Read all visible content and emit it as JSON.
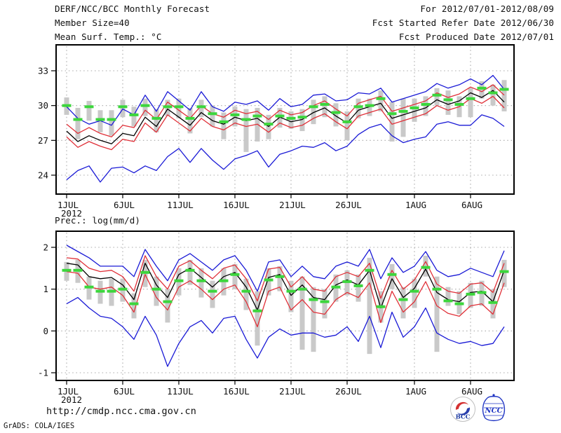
{
  "header": {
    "title": "DERF/NCC/BCC Monthly Forecast",
    "member_size": "Member Size=40",
    "for_range": "For 2012/07/01-2012/08/09",
    "fcst_started": "Fcst Started Refer Date 2012/06/30",
    "fcst_produced": "Fcst Produced Date 2012/07/01"
  },
  "labels": {
    "temp_axis_title": "Mean Surf. Temp.: °C",
    "prec_axis_title": "Prec.: log(mm/d)"
  },
  "footer": {
    "url": "http://cmdp.ncc.cma.gov.cn",
    "credit": "GrADS: COLA/IGES",
    "bcc_logo_text": "BCC",
    "ncc_logo_text": "NCC"
  },
  "colors": {
    "line_blue": "#1a1ad6",
    "line_red": "#e03038",
    "line_black": "#000000",
    "obs_green": "#3cd63c",
    "bar_gray": "#c9c9c9",
    "grid_gray": "#a8a8a8",
    "frame_black": "#000000",
    "text": "#111111",
    "logo_blue": "#2136c4",
    "logo_red": "#d43030"
  },
  "chart_data": [
    {
      "id": "temp",
      "type": "line",
      "title": "Mean Surf. Temp.: °C",
      "x_tick_labels": [
        "1JUL",
        "6JUL",
        "11JUL",
        "16JUL",
        "21JUL",
        "26JUL",
        "1AUG",
        "6AUG"
      ],
      "x_tick_days": [
        0,
        5,
        10,
        15,
        20,
        25,
        31,
        36
      ],
      "x_sub_label": "2012",
      "n_days": 40,
      "yticks": [
        33,
        30,
        27,
        24
      ],
      "ylim": [
        22.4,
        34.2
      ],
      "grid": true,
      "series": [
        {
          "name": "ensemble max (blue)",
          "color_key": "line_blue",
          "values": [
            29.9,
            28.9,
            28.4,
            28.7,
            28.3,
            29.7,
            29.2,
            30.9,
            29.5,
            31.2,
            30.4,
            29.6,
            31.2,
            29.9,
            29.5,
            30.3,
            30.1,
            30.4,
            29.6,
            30.6,
            29.9,
            30.1,
            30.9,
            31.0,
            30.4,
            30.5,
            31.1,
            31.0,
            31.5,
            30.3,
            30.6,
            30.9,
            31.2,
            31.9,
            31.5,
            31.8,
            32.3,
            31.8,
            32.6,
            31.4
          ]
        },
        {
          "name": "upper spread (red)",
          "color_key": "line_red",
          "values": [
            28.4,
            27.6,
            28.1,
            27.6,
            27.3,
            28.3,
            28.1,
            29.6,
            28.8,
            30.3,
            29.6,
            28.9,
            30.0,
            29.3,
            29.0,
            29.6,
            29.3,
            29.5,
            28.8,
            29.6,
            29.2,
            29.4,
            30.0,
            30.4,
            29.7,
            29.1,
            30.2,
            30.5,
            30.8,
            29.5,
            29.8,
            30.1,
            30.4,
            31.1,
            30.7,
            31.0,
            31.6,
            31.2,
            31.8,
            30.9
          ]
        },
        {
          "name": "ensemble mean (black)",
          "color_key": "line_black",
          "values": [
            27.8,
            26.9,
            27.4,
            27.0,
            26.7,
            27.6,
            27.4,
            29.0,
            28.2,
            29.7,
            29.0,
            28.3,
            29.4,
            28.7,
            28.4,
            29.0,
            28.7,
            28.9,
            28.2,
            29.0,
            28.6,
            28.8,
            29.4,
            29.8,
            29.1,
            28.5,
            29.6,
            29.9,
            30.2,
            28.9,
            29.2,
            29.5,
            29.8,
            30.5,
            30.1,
            30.4,
            31.1,
            30.7,
            31.3,
            30.3
          ]
        },
        {
          "name": "lower spread (red)",
          "color_key": "line_red",
          "values": [
            27.3,
            26.4,
            26.9,
            26.5,
            26.2,
            27.1,
            26.9,
            28.5,
            27.7,
            29.2,
            28.5,
            27.8,
            28.9,
            28.2,
            27.9,
            28.5,
            28.2,
            28.4,
            27.7,
            28.5,
            28.1,
            28.3,
            28.9,
            29.3,
            28.6,
            28.0,
            29.1,
            29.4,
            29.7,
            28.4,
            28.7,
            29.0,
            29.3,
            30.0,
            29.6,
            29.9,
            30.6,
            30.2,
            30.8,
            29.8
          ]
        },
        {
          "name": "ensemble min (blue)",
          "color_key": "line_blue",
          "values": [
            23.6,
            24.4,
            24.8,
            23.4,
            24.6,
            24.7,
            24.2,
            24.8,
            24.4,
            25.6,
            26.3,
            25.1,
            26.3,
            25.3,
            24.5,
            25.4,
            25.7,
            26.1,
            24.7,
            25.8,
            26.1,
            26.5,
            26.4,
            26.8,
            26.1,
            26.5,
            27.5,
            28.1,
            28.4,
            27.4,
            26.8,
            27.1,
            27.3,
            28.4,
            28.6,
            28.3,
            28.3,
            29.2,
            28.9,
            28.2
          ]
        }
      ],
      "obs_dashes": {
        "name": "green dash marks",
        "color_key": "obs_green",
        "values": [
          30.0,
          28.8,
          29.9,
          28.8,
          28.8,
          29.9,
          29.2,
          30.0,
          28.9,
          29.9,
          29.9,
          28.9,
          29.9,
          29.3,
          28.6,
          29.2,
          28.8,
          29.1,
          28.4,
          29.1,
          28.9,
          29.0,
          29.9,
          30.1,
          29.4,
          28.6,
          29.9,
          30.0,
          30.6,
          29.3,
          29.5,
          29.8,
          30.1,
          30.9,
          30.5,
          30.1,
          30.6,
          31.5,
          31.1,
          31.4
        ]
      },
      "spread_bars": {
        "name": "gray spread bars",
        "color_key": "bar_gray",
        "hi": [
          30.7,
          29.8,
          30.4,
          29.6,
          29.6,
          30.5,
          29.9,
          30.6,
          29.7,
          30.5,
          30.6,
          29.8,
          30.5,
          30.0,
          29.4,
          29.9,
          29.7,
          29.8,
          29.2,
          29.8,
          29.5,
          29.7,
          30.5,
          30.8,
          30.2,
          29.5,
          30.6,
          30.6,
          31.3,
          30.3,
          30.6,
          30.6,
          30.8,
          31.5,
          31.3,
          30.8,
          31.5,
          32.1,
          31.8,
          32.2
        ],
        "lo": [
          29.2,
          27.1,
          28.7,
          27.7,
          27.4,
          29.0,
          28.2,
          29.1,
          27.7,
          29.1,
          28.9,
          27.6,
          29.0,
          28.2,
          27.1,
          28.2,
          26.0,
          26.9,
          27.1,
          28.1,
          28.0,
          27.8,
          28.4,
          29.0,
          28.2,
          27.0,
          28.9,
          29.1,
          29.5,
          26.9,
          27.3,
          28.6,
          29.1,
          30.0,
          29.2,
          29.0,
          29.0,
          30.6,
          30.0,
          29.5
        ]
      }
    },
    {
      "id": "prec",
      "type": "line",
      "title": "Prec.: log(mm/d)",
      "x_tick_labels": [
        "1JUL",
        "6JUL",
        "11JUL",
        "16JUL",
        "21JUL",
        "26JUL",
        "1AUG",
        "6AUG"
      ],
      "x_tick_days": [
        0,
        5,
        10,
        15,
        20,
        25,
        31,
        36
      ],
      "x_sub_label": "2012",
      "n_days": 40,
      "yticks": [
        2,
        1,
        0,
        -1
      ],
      "ylim": [
        -1.2,
        2.4
      ],
      "grid": true,
      "series": [
        {
          "name": "ensemble max (blue)",
          "color_key": "line_blue",
          "values": [
            2.05,
            1.9,
            1.75,
            1.55,
            1.55,
            1.55,
            1.3,
            1.95,
            1.55,
            1.2,
            1.7,
            1.85,
            1.65,
            1.45,
            1.7,
            1.8,
            1.45,
            0.95,
            1.65,
            1.7,
            1.3,
            1.55,
            1.3,
            1.25,
            1.55,
            1.65,
            1.55,
            1.95,
            1.25,
            1.75,
            1.4,
            1.55,
            1.9,
            1.45,
            1.3,
            1.35,
            1.5,
            1.4,
            1.3,
            1.92
          ]
        },
        {
          "name": "upper spread (red)",
          "color_key": "line_red",
          "values": [
            1.75,
            1.72,
            1.5,
            1.42,
            1.45,
            1.3,
            0.95,
            1.8,
            1.3,
            1.0,
            1.55,
            1.68,
            1.45,
            1.25,
            1.5,
            1.58,
            1.25,
            0.72,
            1.48,
            1.52,
            1.05,
            1.3,
            1.0,
            0.95,
            1.3,
            1.4,
            1.3,
            1.62,
            0.78,
            1.45,
            1.0,
            1.22,
            1.66,
            1.12,
            0.95,
            0.9,
            1.12,
            1.15,
            0.92,
            1.62
          ]
        },
        {
          "name": "ensemble mean (black)",
          "color_key": "line_black",
          "values": [
            1.62,
            1.58,
            1.3,
            1.25,
            1.28,
            1.1,
            0.75,
            1.62,
            1.1,
            0.8,
            1.35,
            1.5,
            1.28,
            1.05,
            1.3,
            1.4,
            1.05,
            0.5,
            1.28,
            1.35,
            0.85,
            1.1,
            0.8,
            0.75,
            1.1,
            1.22,
            1.1,
            1.45,
            0.55,
            1.25,
            0.8,
            1.02,
            1.48,
            0.92,
            0.75,
            0.7,
            0.92,
            0.95,
            0.7,
            1.45
          ]
        },
        {
          "name": "lower spread (red)",
          "color_key": "line_red",
          "values": [
            1.42,
            1.38,
            1.05,
            1.0,
            1.05,
            0.85,
            0.45,
            1.35,
            0.8,
            0.5,
            1.05,
            1.2,
            1.0,
            0.75,
            1.0,
            1.1,
            0.7,
            0.1,
            0.95,
            1.05,
            0.5,
            0.75,
            0.45,
            0.4,
            0.75,
            0.92,
            0.8,
            1.15,
            0.2,
            0.95,
            0.45,
            0.7,
            1.18,
            0.6,
            0.42,
            0.35,
            0.6,
            0.65,
            0.4,
            1.15
          ]
        },
        {
          "name": "ensemble min (blue)",
          "color_key": "line_blue",
          "values": [
            0.65,
            0.8,
            0.55,
            0.35,
            0.3,
            0.1,
            -0.2,
            0.35,
            -0.1,
            -0.85,
            -0.3,
            0.1,
            0.25,
            -0.05,
            0.3,
            0.35,
            -0.2,
            -0.65,
            -0.15,
            0.05,
            -0.1,
            -0.05,
            -0.05,
            -0.15,
            -0.1,
            0.1,
            -0.25,
            0.35,
            -0.4,
            0.45,
            -0.15,
            0.1,
            0.55,
            -0.05,
            -0.2,
            -0.3,
            -0.25,
            -0.35,
            -0.3,
            0.1
          ]
        }
      ],
      "obs_dashes": {
        "name": "green dash marks",
        "color_key": "obs_green",
        "values": [
          1.45,
          1.45,
          1.05,
          0.95,
          0.95,
          1.0,
          0.65,
          1.4,
          1.0,
          0.7,
          1.2,
          1.45,
          1.2,
          0.95,
          1.2,
          1.35,
          0.95,
          0.48,
          1.22,
          1.3,
          0.95,
          1.0,
          0.75,
          0.7,
          1.05,
          1.18,
          1.08,
          1.45,
          0.58,
          1.35,
          0.75,
          0.95,
          1.52,
          1.0,
          0.72,
          0.65,
          0.88,
          0.92,
          0.68,
          1.42
        ]
      },
      "spread_bars": {
        "name": "gray spread bars",
        "color_key": "bar_gray",
        "hi": [
          1.65,
          1.7,
          1.3,
          1.2,
          1.25,
          1.25,
          0.9,
          1.7,
          1.3,
          1.0,
          1.5,
          1.7,
          1.5,
          1.2,
          1.5,
          1.6,
          1.25,
          0.95,
          1.5,
          1.55,
          1.2,
          1.3,
          1.05,
          1.0,
          1.35,
          1.45,
          1.35,
          1.75,
          0.95,
          1.6,
          1.05,
          1.25,
          1.8,
          1.3,
          1.05,
          0.95,
          1.15,
          1.2,
          1.0,
          1.7
        ],
        "lo": [
          1.2,
          1.15,
          0.75,
          0.65,
          0.6,
          0.7,
          0.3,
          1.05,
          0.6,
          0.2,
          0.85,
          1.1,
          0.8,
          0.55,
          0.85,
          1.0,
          0.5,
          -0.35,
          0.85,
          0.95,
          0.45,
          -0.45,
          -0.5,
          0.3,
          0.7,
          0.85,
          0.7,
          -0.55,
          0.2,
          1.0,
          0.3,
          0.55,
          1.3,
          -0.5,
          0.6,
          0.4,
          0.55,
          0.6,
          0.3,
          1.05
        ]
      }
    }
  ]
}
